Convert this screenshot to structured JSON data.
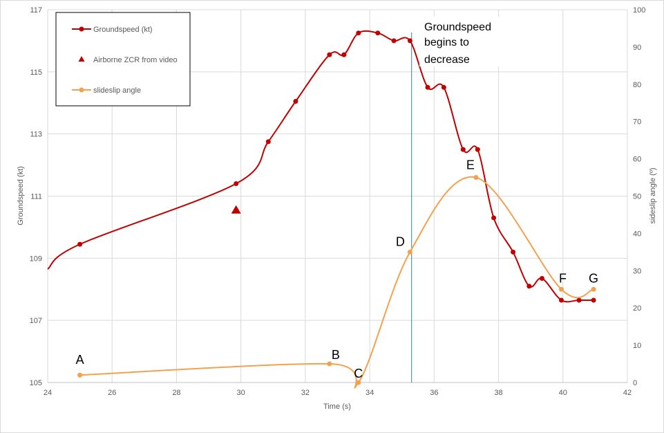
{
  "chart_data": {
    "type": "line",
    "xlabel": "Time (s)",
    "ylabel": "Groundspeed (kt)",
    "y2label": "sideslip angle (º)",
    "xlim": [
      24,
      42
    ],
    "ylim": [
      105,
      117
    ],
    "y2lim": [
      0,
      100
    ],
    "x_ticks": [
      "24",
      "26",
      "28",
      "30",
      "32",
      "34",
      "36",
      "38",
      "40",
      "42"
    ],
    "y_ticks": [
      "105",
      "107",
      "109",
      "111",
      "113",
      "115",
      "117"
    ],
    "y2_ticks": [
      "0",
      "10",
      "20",
      "30",
      "40",
      "50",
      "60",
      "70",
      "80",
      "90",
      "100"
    ],
    "grid": true,
    "legend_position": "top-left",
    "series": [
      {
        "name": "Groundspeed (kt)",
        "axis": "left",
        "color": "#c00000",
        "marker": "circle",
        "lead_in": [
          24.0,
          108.65
        ],
        "x": [
          25.0,
          29.85,
          30.85,
          31.7,
          32.75,
          33.2,
          33.65,
          34.25,
          34.75,
          35.25,
          35.8,
          36.3,
          36.9,
          37.35,
          37.85,
          38.45,
          38.95,
          39.35,
          39.95,
          40.5,
          40.95
        ],
        "y": [
          109.45,
          111.4,
          112.75,
          114.05,
          115.55,
          115.55,
          116.25,
          116.25,
          116.0,
          116.0,
          114.5,
          114.5,
          112.5,
          112.5,
          110.3,
          109.2,
          108.1,
          108.35,
          107.65,
          107.65,
          107.65
        ]
      },
      {
        "name": "Airborne ZCR from video",
        "axis": "left",
        "color": "#c00000",
        "marker": "triangle",
        "x": [
          29.85
        ],
        "y": [
          110.55
        ]
      },
      {
        "name": "slideslip angle",
        "axis": "right",
        "color": "#f4a04d",
        "marker": "circle",
        "x": [
          25.0,
          32.75,
          33.65,
          35.25,
          37.3,
          39.95,
          40.95
        ],
        "y": [
          2,
          5,
          0,
          35,
          55,
          25,
          25
        ]
      }
    ],
    "point_labels": [
      {
        "text": "A",
        "x": 25.0,
        "y2": 2
      },
      {
        "text": "B",
        "x": 32.75,
        "y2": 5
      },
      {
        "text": "C",
        "x": 33.65,
        "y2": 0
      },
      {
        "text": "D",
        "x": 35.25,
        "y2": 35
      },
      {
        "text": "E",
        "x": 37.3,
        "y2": 55
      },
      {
        "text": "F",
        "x": 39.95,
        "y2": 25
      },
      {
        "text": "G",
        "x": 40.95,
        "y2": 25
      }
    ],
    "vertical_line": {
      "x": 35.3,
      "color": "#31859c"
    },
    "annotation": {
      "lines": [
        "Groundspeed",
        "begins to",
        "decrease"
      ]
    }
  }
}
